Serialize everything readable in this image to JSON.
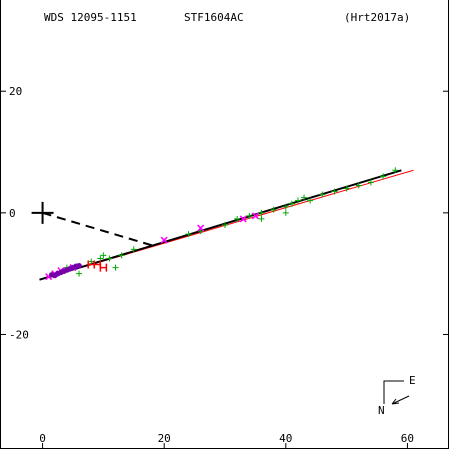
{
  "chart_data": {
    "type": "scatter",
    "header": {
      "left": "WDS 12095-1151",
      "center": "STF1604AC",
      "right": "(Hrt2017a)"
    },
    "xlim": [
      -7,
      67
    ],
    "ylim": [
      -39,
      35
    ],
    "x_ticks": [
      0,
      20,
      40,
      60
    ],
    "x_tick_labels": [
      "0",
      "20",
      "40",
      "60"
    ],
    "y_ticks": [
      20,
      0,
      -20
    ],
    "y_tick_labels": [
      "20",
      "0",
      "-20"
    ],
    "compass": {
      "east_label": "E",
      "north_label": "N"
    },
    "primary_star": {
      "x": 0,
      "y": 0
    },
    "orbit_fit_line": {
      "color": "#000000",
      "points": [
        [
          -0.5,
          -11
        ],
        [
          59,
          7
        ]
      ]
    },
    "alt_fit_line": {
      "color": "#ff0000",
      "points": [
        [
          -0.5,
          -11
        ],
        [
          61,
          7
        ]
      ]
    },
    "dashed_connector": {
      "from": [
        0,
        0
      ],
      "to": [
        18.5,
        -5.5
      ]
    },
    "series": [
      {
        "marker": "plus",
        "color": "#00aa00",
        "points": [
          [
            8,
            -8
          ],
          [
            9.5,
            -7.5
          ],
          [
            10,
            -7
          ],
          [
            11,
            -7.5
          ],
          [
            12,
            -9
          ],
          [
            13,
            -7
          ],
          [
            4,
            -9
          ],
          [
            6,
            -10
          ],
          [
            32,
            -1
          ],
          [
            34,
            -0.5
          ],
          [
            36,
            0
          ],
          [
            38,
            0.5
          ],
          [
            40,
            1
          ],
          [
            41,
            1.5
          ],
          [
            42,
            2
          ],
          [
            43,
            2.5
          ],
          [
            44,
            2
          ],
          [
            46,
            3
          ],
          [
            48,
            3.5
          ],
          [
            50,
            4
          ],
          [
            52,
            4.5
          ],
          [
            54,
            5
          ],
          [
            56,
            6
          ],
          [
            58,
            7
          ],
          [
            30,
            -2
          ],
          [
            26,
            -3
          ],
          [
            24,
            -3.5
          ],
          [
            15,
            -6
          ],
          [
            36,
            -1
          ],
          [
            40,
            0
          ]
        ]
      },
      {
        "marker": "x",
        "color": "#ff00ff",
        "points": [
          [
            26,
            -2.5
          ],
          [
            20,
            -4.5
          ],
          [
            33,
            -1
          ],
          [
            35,
            -0.5
          ],
          [
            2,
            -10
          ],
          [
            3,
            -9.5
          ],
          [
            1,
            -10.5
          ],
          [
            5,
            -9
          ]
        ]
      },
      {
        "marker": "circle",
        "color": "#7700aa",
        "points": [
          [
            1.5,
            -10.2
          ],
          [
            2.5,
            -10
          ],
          [
            3.5,
            -9.6
          ],
          [
            4.5,
            -9.2
          ],
          [
            5.5,
            -8.8
          ],
          [
            2,
            -10.3
          ],
          [
            3,
            -9.8
          ],
          [
            4,
            -9.4
          ],
          [
            5,
            -9.0
          ],
          [
            6,
            -8.7
          ]
        ]
      },
      {
        "marker": "bar",
        "color": "#ff0000",
        "points": [
          [
            8,
            -8.5
          ],
          [
            9,
            -8.5
          ],
          [
            10,
            -9
          ]
        ]
      }
    ]
  }
}
